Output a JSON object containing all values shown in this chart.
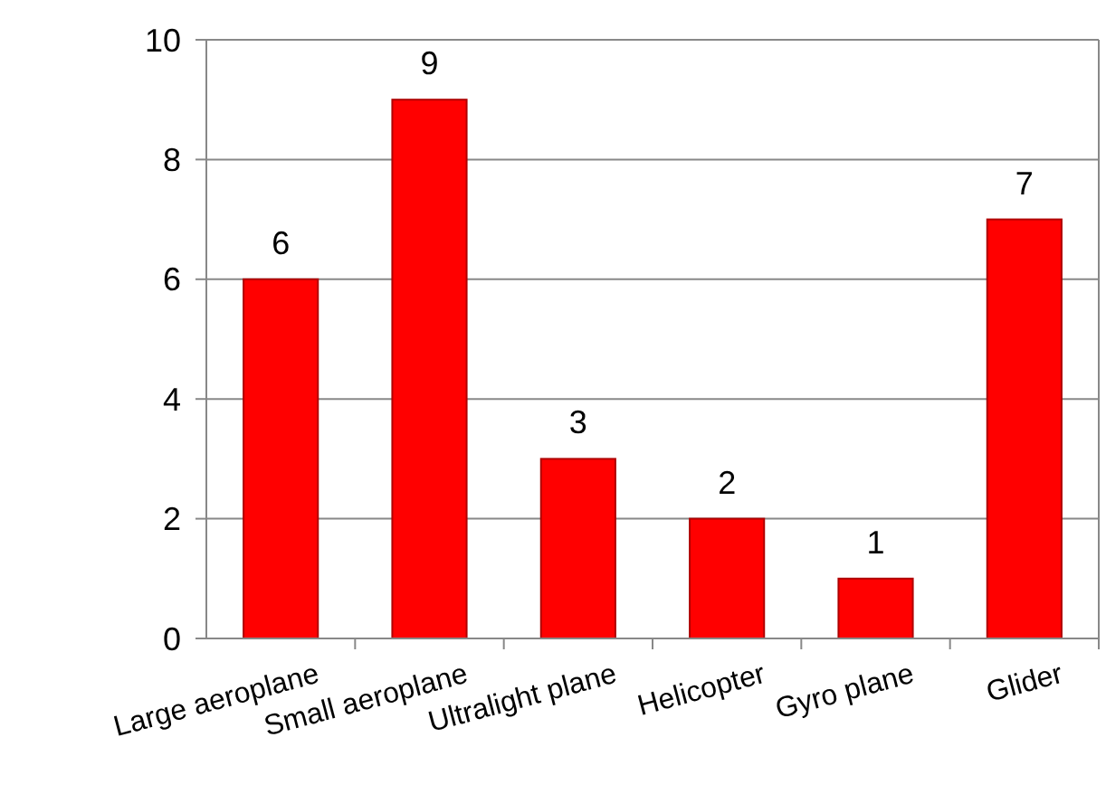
{
  "chart_data": {
    "type": "bar",
    "categories": [
      "Large aeroplane",
      "Small aeroplane",
      "Ultralight plane",
      "Helicopter",
      "Gyro plane",
      "Glider"
    ],
    "values": [
      6,
      9,
      3,
      2,
      1,
      7
    ],
    "color": "#ff0000",
    "ylim": [
      0,
      10
    ],
    "yticks": [
      0,
      2,
      4,
      6,
      8,
      10
    ],
    "grid": "y",
    "data_labels": true
  }
}
